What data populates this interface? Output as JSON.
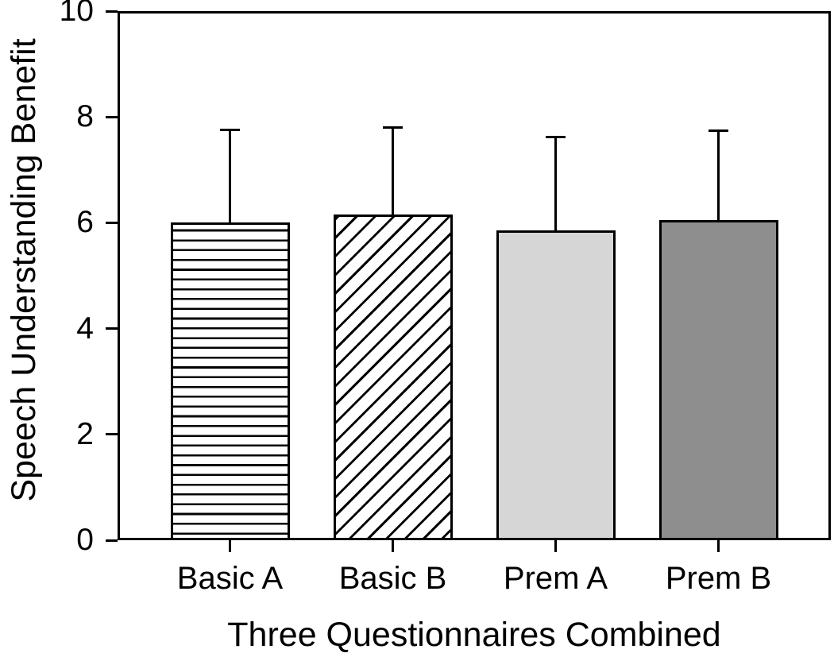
{
  "figure": {
    "background": "#ffffff",
    "foreground": "#000000"
  },
  "chart_data": {
    "type": "bar",
    "title": "",
    "xlabel": "Three Questionnaires Combined",
    "ylabel": "Speech Understanding Benefit",
    "categories": [
      "Basic A",
      "Basic B",
      "Prem A",
      "Prem B"
    ],
    "values": [
      6.0,
      6.15,
      5.85,
      6.05
    ],
    "error_plus": [
      1.78,
      1.67,
      1.79,
      1.72
    ],
    "error_bar_direction": "upper-only",
    "ylim": [
      0,
      10
    ],
    "yticks": [
      0,
      2,
      4,
      6,
      8,
      10
    ],
    "grid": false,
    "legend_position": "none",
    "frame": "full-box",
    "line_color": "#000000",
    "bar_styles": [
      {
        "pattern": "horizontal-lines",
        "fill": "#ffffff",
        "stroke": "#000000"
      },
      {
        "pattern": "diagonal-lines",
        "fill": "#ffffff",
        "stroke": "#000000"
      },
      {
        "pattern": "solid",
        "fill": "#d6d6d6",
        "stroke": "#000000"
      },
      {
        "pattern": "solid",
        "fill": "#8e8e8e",
        "stroke": "#000000"
      }
    ]
  }
}
